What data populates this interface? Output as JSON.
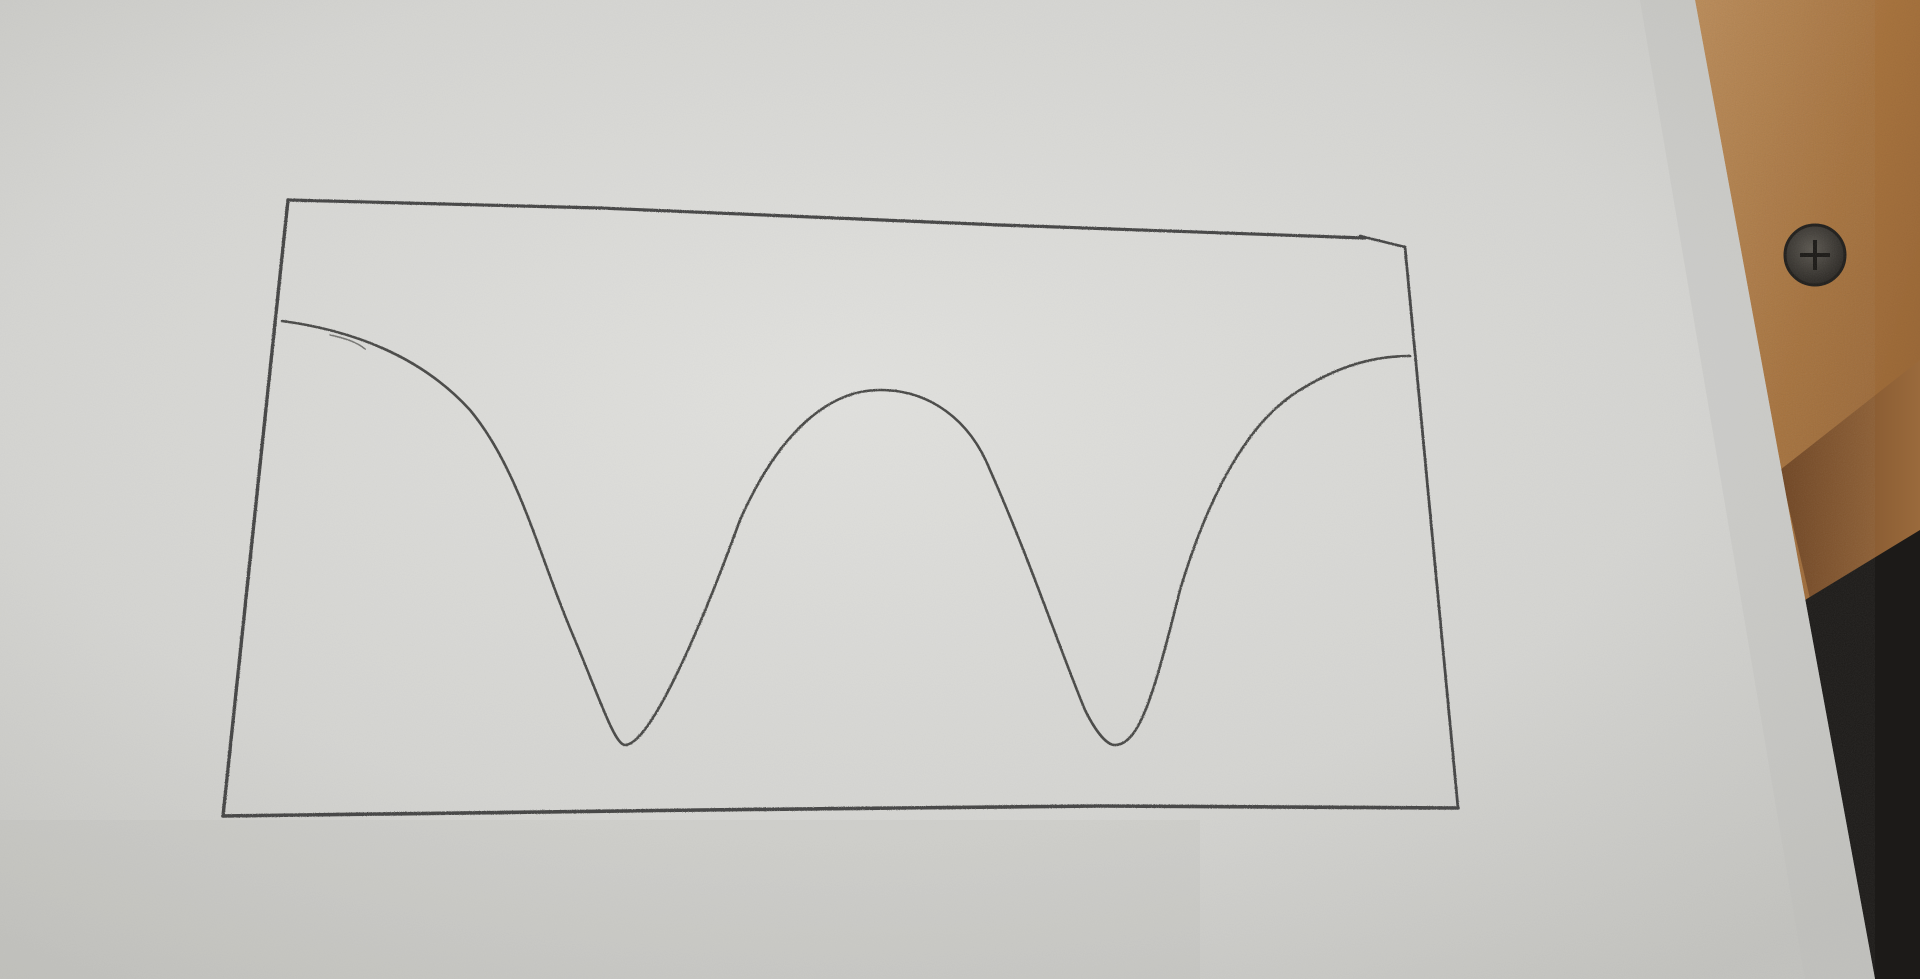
{
  "scene": {
    "description_tags": [
      "paper-sheet",
      "pencil-rectangle",
      "pencil-curve",
      "wooden-desk",
      "screw-head"
    ]
  },
  "colors": {
    "paper_light": "#dcdcda",
    "paper_mid": "#cfcfcc",
    "paper_shadow": "#bdbdba",
    "pencil": "#4a4a48",
    "wood_light": "#b8895a",
    "wood_dark": "#7a4e2a",
    "wood_edge": "#8a5a34",
    "dark_gap": "#1c1a18",
    "screw": "#3b3833"
  }
}
